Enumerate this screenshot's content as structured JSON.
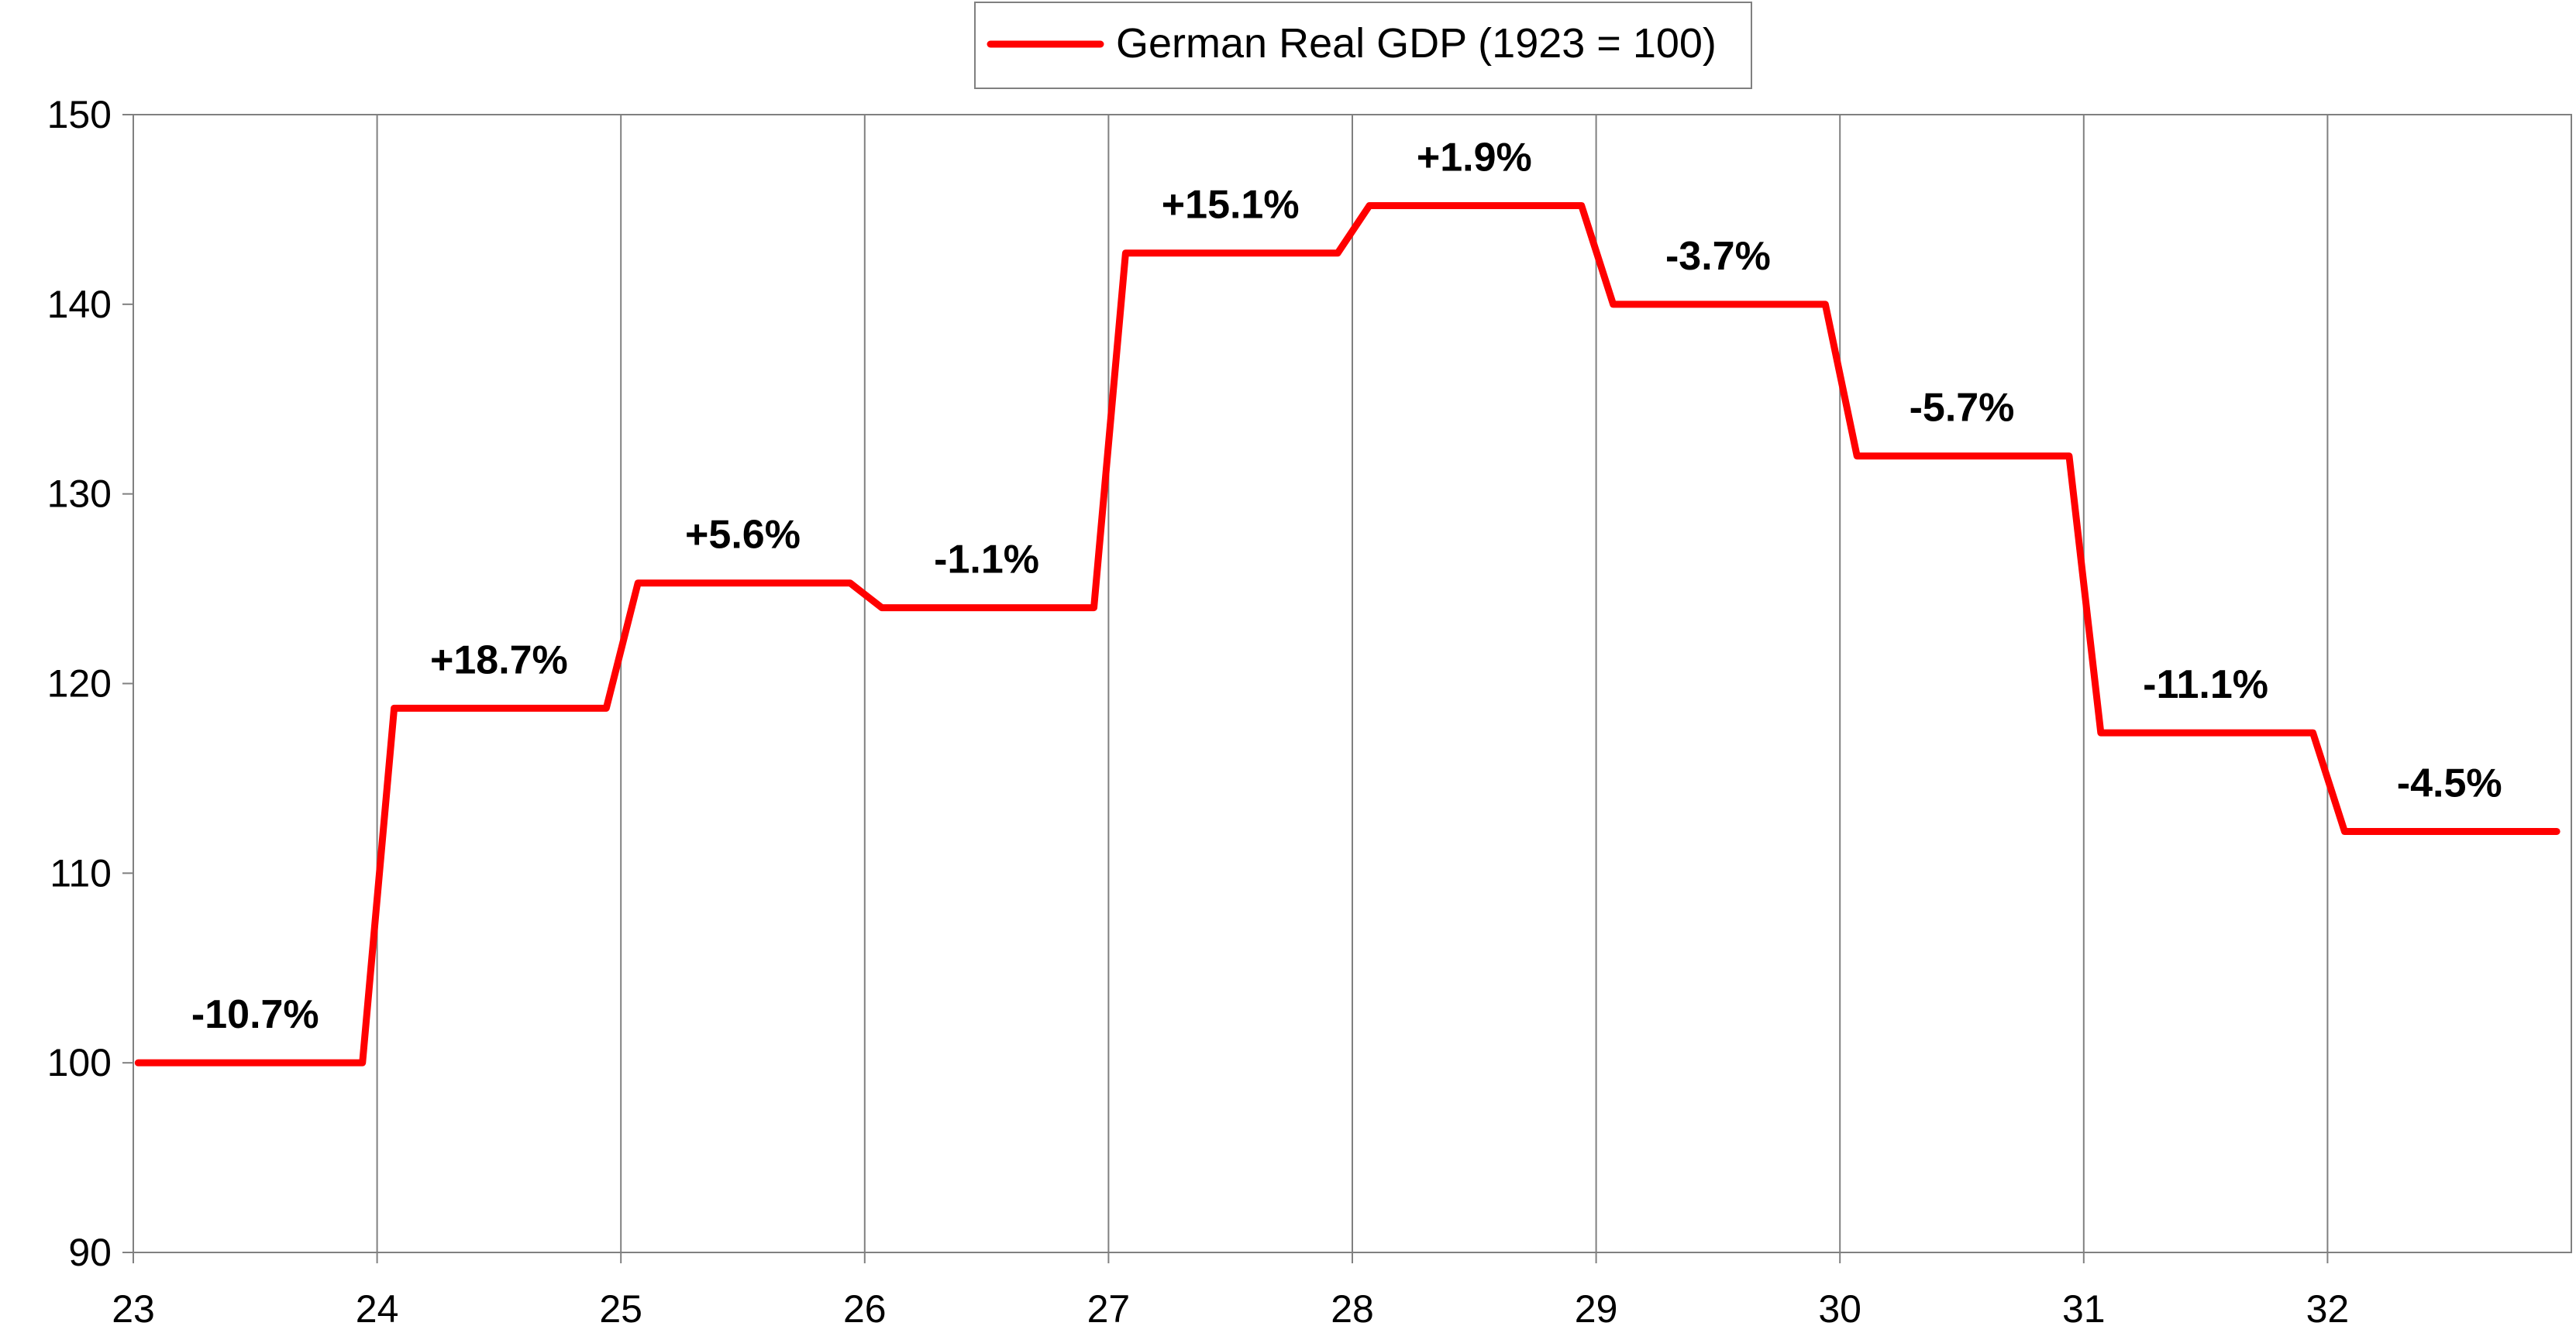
{
  "chart_data": {
    "type": "line",
    "title": "",
    "xlabel": "",
    "ylabel": "",
    "legend": {
      "placement": "top-center",
      "entries": [
        "German Real GDP (1923 = 100)"
      ]
    },
    "grid": {
      "vertical": true,
      "horizontal": false
    },
    "ylim": [
      90,
      150
    ],
    "xlim": [
      23,
      33
    ],
    "y_ticks": [
      "90",
      "100",
      "110",
      "120",
      "130",
      "140",
      "150"
    ],
    "x_ticks": [
      "23",
      "24",
      "25",
      "26",
      "27",
      "28",
      "29",
      "30",
      "31",
      "32"
    ],
    "colors": {
      "series": "#ff0000"
    },
    "series": [
      {
        "name": "German Real GDP (1923 = 100)",
        "shape": "step",
        "points": [
          {
            "year": 23,
            "value": 100.0,
            "label": "-10.7%"
          },
          {
            "year": 24,
            "value": 118.7,
            "label": "+18.7%"
          },
          {
            "year": 25,
            "value": 125.3,
            "label": "+5.6%"
          },
          {
            "year": 26,
            "value": 124.0,
            "label": "-1.1%"
          },
          {
            "year": 27,
            "value": 142.7,
            "label": "+15.1%"
          },
          {
            "year": 28,
            "value": 145.2,
            "label": "+1.9%"
          },
          {
            "year": 29,
            "value": 140.0,
            "label": "-3.7%"
          },
          {
            "year": 30,
            "value": 132.0,
            "label": "-5.7%"
          },
          {
            "year": 31,
            "value": 117.4,
            "label": "-11.1%"
          },
          {
            "year": 32,
            "value": 112.2,
            "label": "-4.5%"
          }
        ]
      }
    ]
  }
}
